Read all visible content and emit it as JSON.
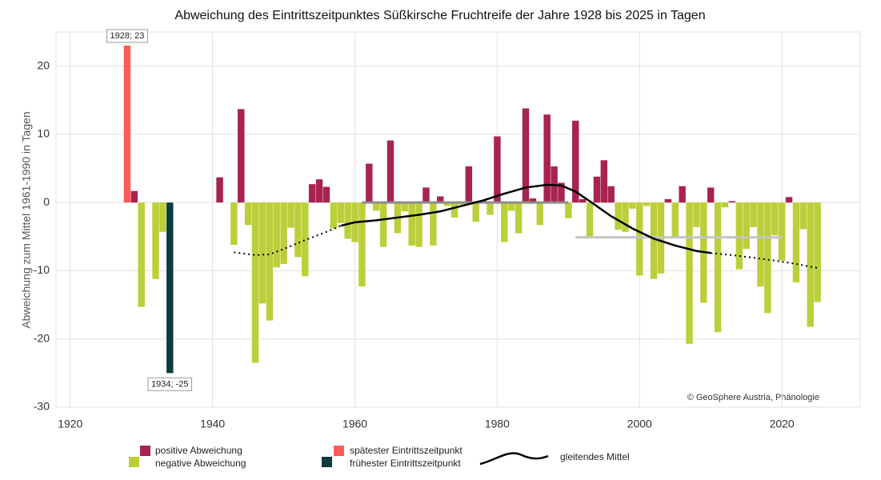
{
  "chart_data": {
    "type": "bar",
    "title": "Abweichung des Eintrittszeitpunktes Süßkirsche Fruchtreife der Jahre 1928 bis 2025 in Tagen",
    "y_label": "Abweichung zum Mittel 1961-1990 in Tagen",
    "source": "© GeoSphere Austria, Phänologie",
    "x": [
      1928,
      1929,
      1930,
      1932,
      1933,
      1934,
      1941,
      1943,
      1944,
      1945,
      1946,
      1947,
      1948,
      1949,
      1950,
      1951,
      1952,
      1953,
      1954,
      1955,
      1956,
      1957,
      1958,
      1959,
      1960,
      1961,
      1962,
      1963,
      1964,
      1965,
      1966,
      1967,
      1968,
      1969,
      1970,
      1971,
      1972,
      1973,
      1974,
      1975,
      1976,
      1977,
      1978,
      1979,
      1980,
      1981,
      1982,
      1983,
      1984,
      1985,
      1986,
      1987,
      1988,
      1989,
      1990,
      1991,
      1992,
      1993,
      1994,
      1995,
      1996,
      1997,
      1998,
      1999,
      2000,
      2001,
      2002,
      2003,
      2004,
      2005,
      2006,
      2007,
      2008,
      2009,
      2010,
      2011,
      2012,
      2013,
      2014,
      2015,
      2016,
      2017,
      2018,
      2019,
      2020,
      2021,
      2022,
      2023,
      2024,
      2025
    ],
    "values": [
      23,
      1.7,
      -15.3,
      -11.2,
      -4.3,
      -25,
      3.7,
      -6.2,
      13.7,
      -3.3,
      -23.5,
      -14.8,
      -17.3,
      -9.5,
      -9,
      -3.7,
      -8,
      -10.8,
      2.7,
      3.4,
      2.3,
      -3.8,
      -3,
      -5.3,
      -5.8,
      -12.3,
      5.7,
      -1.2,
      -6.5,
      9.1,
      -4.5,
      -1.3,
      -6.3,
      -6.5,
      2.2,
      -6.3,
      0.9,
      -0.5,
      -2.2,
      -0.3,
      5.3,
      -2.8,
      0.3,
      -1.8,
      9.7,
      -5.8,
      -1.2,
      -4.5,
      13.8,
      0.6,
      -3.3,
      12.9,
      5.3,
      2.9,
      -2.3,
      12,
      0.5,
      -5,
      3.8,
      6.2,
      2.4,
      -4,
      -4.3,
      -0.9,
      -10.7,
      -0.5,
      -11.2,
      -10.4,
      0.5,
      -5,
      2.4,
      -20.7,
      -3.6,
      -14.7,
      2.2,
      -19,
      -0.7,
      0.2,
      -9.8,
      -6.8,
      -3.6,
      -12.3,
      -16.2,
      -4.8,
      -8.5,
      0.8,
      -11.7,
      -3.9,
      -18.2,
      -14.6
    ],
    "colors": {
      "positive": "#a8234e",
      "negative": "#bccf3a",
      "latest": "#ff5a5a",
      "earliest": "#0d3b3f"
    },
    "legend": {
      "positive": "positive Abweichung",
      "negative": "negative Abweichung",
      "latest": "spätester Eintrittszeitpunkt",
      "earliest": "frühester Eintrittszeitpunkt"
    },
    "max_label": "1928; 23",
    "min_label": "1934; -25",
    "moving_average": {
      "name": "gleitendes Mittel",
      "color": "#000000",
      "x": [
        1943,
        1946,
        1948,
        1950,
        1953,
        1956,
        1958,
        1960,
        1963,
        1966,
        1969,
        1972,
        1975,
        1978,
        1981,
        1984,
        1987,
        1989,
        1991,
        1993,
        1996,
        1999,
        2002,
        2005,
        2008,
        2010,
        2013,
        2016,
        2019,
        2022,
        2025
      ],
      "values": [
        -7.3,
        -7.7,
        -7.6,
        -6.8,
        -5.5,
        -4.3,
        -3.4,
        -2.9,
        -2.6,
        -2.2,
        -1.8,
        -1.3,
        -0.5,
        0.3,
        1.3,
        2.2,
        2.6,
        2.5,
        1.6,
        0.2,
        -2.0,
        -3.8,
        -5.3,
        -6.3,
        -7.1,
        -7.4,
        -7.7,
        -8.1,
        -8.5,
        -9.0,
        -9.6
      ],
      "solid_from": 1958,
      "solid_to": 2010
    },
    "reference_lines": [
      {
        "from": 1961,
        "to": 1990,
        "value": 0,
        "color": "#8c8c8c"
      },
      {
        "from": 1991,
        "to": 2020,
        "value": -5.1,
        "color": "#c4c4c4"
      }
    ],
    "xlim": [
      1918,
      2031
    ],
    "xticks": [
      1920,
      1940,
      1960,
      1980,
      2000,
      2020
    ],
    "ylim": [
      -30,
      25
    ],
    "yticks": [
      -30,
      -20,
      -10,
      0,
      10,
      20
    ],
    "grid": true
  }
}
